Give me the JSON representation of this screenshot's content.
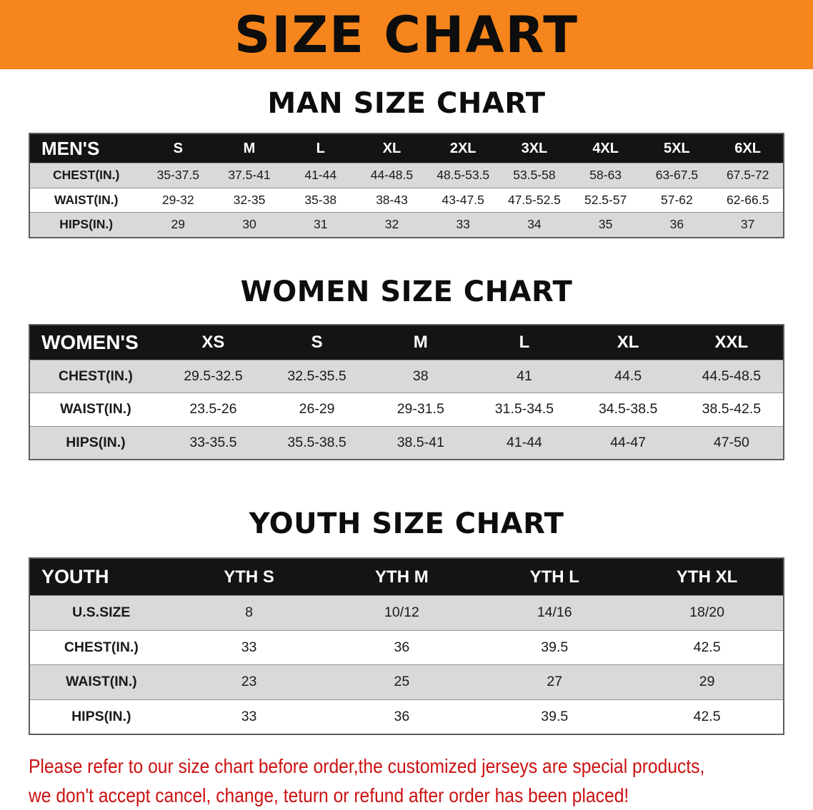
{
  "banner": {
    "title": "SIZE CHART"
  },
  "colors": {
    "banner-bg": "#f5851c",
    "header-bg": "#141414",
    "header-text": "#ffffff",
    "row-alt-bg": "#d9d9d9",
    "disclaimer-red": "#cc1111"
  },
  "chart_data": [
    {
      "type": "table",
      "id": "mens",
      "title": "MAN SIZE CHART",
      "name": "MEN'S",
      "columns": [
        "S",
        "M",
        "L",
        "XL",
        "2XL",
        "3XL",
        "4XL",
        "5XL",
        "6XL"
      ],
      "rows": [
        {
          "label": "CHEST(IN.)",
          "values": [
            "35-37.5",
            "37.5-41",
            "41-44",
            "44-48.5",
            "48.5-53.5",
            "53.5-58",
            "58-63",
            "63-67.5",
            "67.5-72"
          ]
        },
        {
          "label": "WAIST(IN.)",
          "values": [
            "29-32",
            "32-35",
            "35-38",
            "38-43",
            "43-47.5",
            "47.5-52.5",
            "52.5-57",
            "57-62",
            "62-66.5"
          ]
        },
        {
          "label": "HIPS(IN.)",
          "values": [
            "29",
            "30",
            "31",
            "32",
            "33",
            "34",
            "35",
            "36",
            "37"
          ]
        }
      ]
    },
    {
      "type": "table",
      "id": "womens",
      "title": "WOMEN SIZE CHART",
      "name": "WOMEN'S",
      "columns": [
        "XS",
        "S",
        "M",
        "L",
        "XL",
        "XXL"
      ],
      "rows": [
        {
          "label": "CHEST(IN.)",
          "values": [
            "29.5-32.5",
            "32.5-35.5",
            "38",
            "41",
            "44.5",
            "44.5-48.5"
          ]
        },
        {
          "label": "WAIST(IN.)",
          "values": [
            "23.5-26",
            "26-29",
            "29-31.5",
            "31.5-34.5",
            "34.5-38.5",
            "38.5-42.5"
          ]
        },
        {
          "label": "HIPS(IN.)",
          "values": [
            "33-35.5",
            "35.5-38.5",
            "38.5-41",
            "41-44",
            "44-47",
            "47-50"
          ]
        }
      ]
    },
    {
      "type": "table",
      "id": "youth",
      "title": "YOUTH SIZE CHART",
      "name": "YOUTH",
      "columns": [
        "YTH S",
        "YTH M",
        "YTH L",
        "YTH XL"
      ],
      "rows": [
        {
          "label": "U.S.SIZE",
          "values": [
            "8",
            "10/12",
            "14/16",
            "18/20"
          ]
        },
        {
          "label": "CHEST(IN.)",
          "values": [
            "33",
            "36",
            "39.5",
            "42.5"
          ]
        },
        {
          "label": "WAIST(IN.)",
          "values": [
            "23",
            "25",
            "27",
            "29"
          ]
        },
        {
          "label": "HIPS(IN.)",
          "values": [
            "33",
            "36",
            "39.5",
            "42.5"
          ]
        }
      ]
    }
  ],
  "disclaimer": {
    "line1": "Please refer to our size chart before order,the customized jerseys are special products,",
    "line2": "we don't accept cancel, change, teturn or refund after order has been placed!"
  }
}
